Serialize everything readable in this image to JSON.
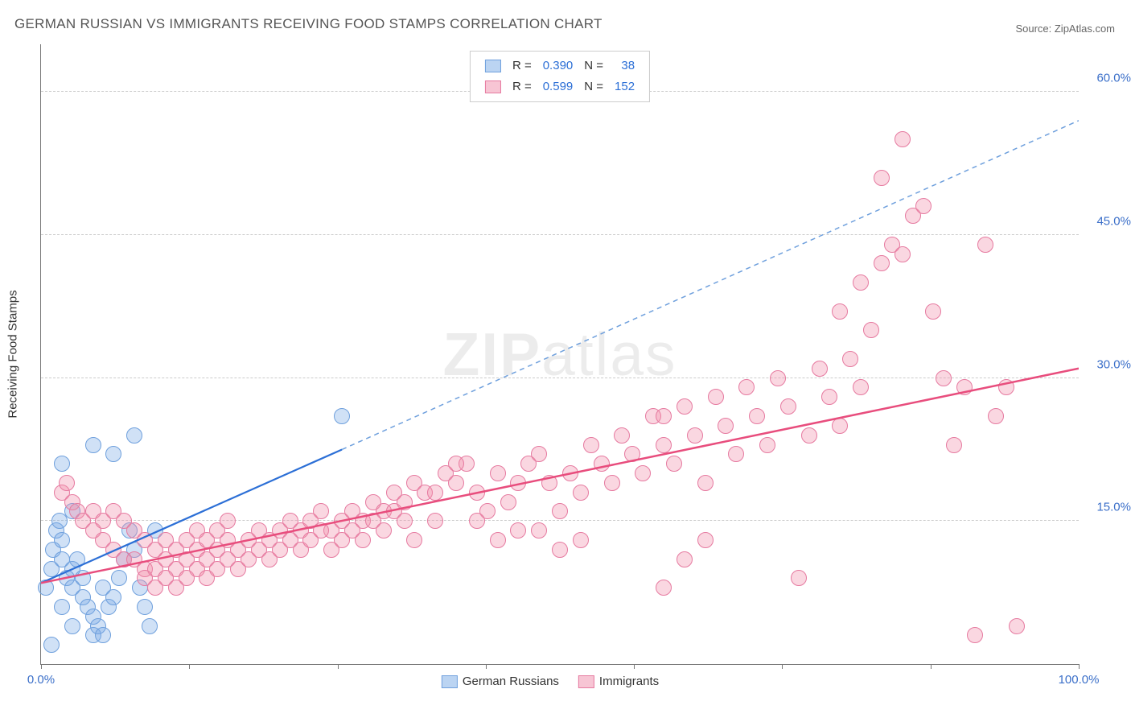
{
  "title": "GERMAN RUSSIAN VS IMMIGRANTS RECEIVING FOOD STAMPS CORRELATION CHART",
  "source": "Source: ZipAtlas.com",
  "watermark_bold": "ZIP",
  "watermark_light": "atlas",
  "chart": {
    "type": "scatter",
    "background_color": "#ffffff",
    "grid_color": "#cccccc",
    "axis_color": "#777777",
    "tick_label_color": "#3b6fc9",
    "xlim": [
      0,
      100
    ],
    "ylim": [
      0,
      65
    ],
    "ylabel": "Receiving Food Stamps",
    "yticks": [
      15,
      30,
      45,
      60
    ],
    "ytick_labels": [
      "15.0%",
      "30.0%",
      "45.0%",
      "60.0%"
    ],
    "xticks": [
      0,
      14.3,
      28.6,
      42.9,
      57.1,
      71.4,
      85.7,
      100
    ],
    "x_first_label": "0.0%",
    "x_last_label": "100.0%",
    "marker_radius": 9,
    "marker_stroke_width": 1.2,
    "series": [
      {
        "name": "German Russians",
        "fill": "rgba(120,170,230,0.35)",
        "stroke": "#6fa0dd",
        "points": [
          [
            0.5,
            8
          ],
          [
            1,
            10
          ],
          [
            1.2,
            12
          ],
          [
            1.5,
            14
          ],
          [
            1.8,
            15
          ],
          [
            2,
            13
          ],
          [
            2,
            11
          ],
          [
            2.5,
            9
          ],
          [
            3,
            8
          ],
          [
            3,
            10
          ],
          [
            3.5,
            11
          ],
          [
            4,
            9
          ],
          [
            4,
            7
          ],
          [
            4.5,
            6
          ],
          [
            5,
            5
          ],
          [
            5,
            3
          ],
          [
            5.5,
            4
          ],
          [
            6,
            3
          ],
          [
            6,
            8
          ],
          [
            6.5,
            6
          ],
          [
            7,
            7
          ],
          [
            7.5,
            9
          ],
          [
            8,
            11
          ],
          [
            8.5,
            14
          ],
          [
            9,
            12
          ],
          [
            9.5,
            8
          ],
          [
            10,
            6
          ],
          [
            10.5,
            4
          ],
          [
            11,
            14
          ],
          [
            3,
            16
          ],
          [
            2,
            21
          ],
          [
            5,
            23
          ],
          [
            7,
            22
          ],
          [
            9,
            24
          ],
          [
            2,
            6
          ],
          [
            3,
            4
          ],
          [
            1,
            2
          ],
          [
            29,
            26
          ]
        ],
        "trend": {
          "x1": 0,
          "y1": 8.5,
          "x2": 29,
          "y2": 22.5,
          "ext_x2": 100,
          "ext_y2": 57,
          "color": "#2c6fd6",
          "width": 2.2,
          "dashed_color": "#6fa0dd"
        }
      },
      {
        "name": "Immigrants",
        "fill": "rgba(240,140,170,0.35)",
        "stroke": "#e67aa0",
        "points": [
          [
            2,
            18
          ],
          [
            2.5,
            19
          ],
          [
            3,
            17
          ],
          [
            3.5,
            16
          ],
          [
            4,
            15
          ],
          [
            5,
            14
          ],
          [
            6,
            13
          ],
          [
            7,
            12
          ],
          [
            8,
            11
          ],
          [
            9,
            11
          ],
          [
            10,
            10
          ],
          [
            11,
            10
          ],
          [
            12,
            11
          ],
          [
            13,
            10
          ],
          [
            14,
            11
          ],
          [
            15,
            12
          ],
          [
            16,
            11
          ],
          [
            17,
            12
          ],
          [
            18,
            13
          ],
          [
            19,
            12
          ],
          [
            20,
            13
          ],
          [
            21,
            14
          ],
          [
            22,
            13
          ],
          [
            23,
            14
          ],
          [
            24,
            15
          ],
          [
            25,
            14
          ],
          [
            26,
            15
          ],
          [
            27,
            16
          ],
          [
            28,
            14
          ],
          [
            29,
            15
          ],
          [
            30,
            16
          ],
          [
            31,
            15
          ],
          [
            32,
            17
          ],
          [
            33,
            16
          ],
          [
            34,
            18
          ],
          [
            35,
            17
          ],
          [
            36,
            19
          ],
          [
            37,
            18
          ],
          [
            38,
            15
          ],
          [
            39,
            20
          ],
          [
            40,
            19
          ],
          [
            41,
            21
          ],
          [
            42,
            18
          ],
          [
            43,
            16
          ],
          [
            44,
            20
          ],
          [
            45,
            17
          ],
          [
            46,
            14
          ],
          [
            47,
            21
          ],
          [
            48,
            22
          ],
          [
            49,
            19
          ],
          [
            50,
            16
          ],
          [
            51,
            20
          ],
          [
            52,
            18
          ],
          [
            53,
            23
          ],
          [
            54,
            21
          ],
          [
            55,
            19
          ],
          [
            56,
            24
          ],
          [
            57,
            22
          ],
          [
            58,
            20
          ],
          [
            59,
            26
          ],
          [
            60,
            23
          ],
          [
            61,
            21
          ],
          [
            62,
            27
          ],
          [
            63,
            24
          ],
          [
            64,
            19
          ],
          [
            65,
            28
          ],
          [
            66,
            25
          ],
          [
            67,
            22
          ],
          [
            68,
            29
          ],
          [
            69,
            26
          ],
          [
            70,
            23
          ],
          [
            71,
            30
          ],
          [
            72,
            27
          ],
          [
            73,
            9
          ],
          [
            74,
            24
          ],
          [
            75,
            31
          ],
          [
            76,
            28
          ],
          [
            77,
            25
          ],
          [
            78,
            32
          ],
          [
            79,
            29
          ],
          [
            80,
            35
          ],
          [
            81,
            42
          ],
          [
            82,
            44
          ],
          [
            83,
            43
          ],
          [
            84,
            47
          ],
          [
            85,
            48
          ],
          [
            86,
            37
          ],
          [
            87,
            30
          ],
          [
            88,
            23
          ],
          [
            89,
            29
          ],
          [
            90,
            3
          ],
          [
            91,
            44
          ],
          [
            92,
            26
          ],
          [
            93,
            29
          ],
          [
            94,
            4
          ],
          [
            77,
            37
          ],
          [
            79,
            40
          ],
          [
            81,
            51
          ],
          [
            83,
            55
          ],
          [
            60,
            8
          ],
          [
            62,
            11
          ],
          [
            64,
            13
          ],
          [
            48,
            14
          ],
          [
            50,
            12
          ],
          [
            52,
            13
          ],
          [
            36,
            13
          ],
          [
            38,
            18
          ],
          [
            40,
            21
          ],
          [
            42,
            15
          ],
          [
            44,
            13
          ],
          [
            46,
            19
          ],
          [
            10,
            9
          ],
          [
            11,
            8
          ],
          [
            12,
            9
          ],
          [
            13,
            8
          ],
          [
            14,
            9
          ],
          [
            15,
            10
          ],
          [
            16,
            9
          ],
          [
            17,
            10
          ],
          [
            18,
            11
          ],
          [
            19,
            10
          ],
          [
            20,
            11
          ],
          [
            21,
            12
          ],
          [
            22,
            11
          ],
          [
            23,
            12
          ],
          [
            24,
            13
          ],
          [
            25,
            12
          ],
          [
            26,
            13
          ],
          [
            27,
            14
          ],
          [
            28,
            12
          ],
          [
            29,
            13
          ],
          [
            30,
            14
          ],
          [
            31,
            13
          ],
          [
            32,
            15
          ],
          [
            33,
            14
          ],
          [
            34,
            16
          ],
          [
            35,
            15
          ],
          [
            5,
            16
          ],
          [
            6,
            15
          ],
          [
            7,
            16
          ],
          [
            8,
            15
          ],
          [
            9,
            14
          ],
          [
            10,
            13
          ],
          [
            11,
            12
          ],
          [
            12,
            13
          ],
          [
            13,
            12
          ],
          [
            14,
            13
          ],
          [
            15,
            14
          ],
          [
            16,
            13
          ],
          [
            17,
            14
          ],
          [
            18,
            15
          ],
          [
            60,
            26
          ]
        ],
        "trend": {
          "x1": 0,
          "y1": 8.5,
          "x2": 100,
          "y2": 31,
          "color": "#e84d7d",
          "width": 2.5
        }
      }
    ],
    "legend_top": {
      "rows": [
        {
          "swatch_fill": "rgba(120,170,230,0.5)",
          "swatch_stroke": "#6fa0dd",
          "r_label": "R =",
          "r_value": "0.390",
          "n_label": "N =",
          "n_value": "38"
        },
        {
          "swatch_fill": "rgba(240,140,170,0.5)",
          "swatch_stroke": "#e67aa0",
          "r_label": "R =",
          "r_value": "0.599",
          "n_label": "N =",
          "n_value": "152"
        }
      ],
      "value_color": "#2c6fd6"
    },
    "legend_bottom": {
      "items": [
        {
          "swatch_fill": "rgba(120,170,230,0.5)",
          "swatch_stroke": "#6fa0dd",
          "label": "German Russians"
        },
        {
          "swatch_fill": "rgba(240,140,170,0.5)",
          "swatch_stroke": "#e67aa0",
          "label": "Immigrants"
        }
      ]
    }
  }
}
